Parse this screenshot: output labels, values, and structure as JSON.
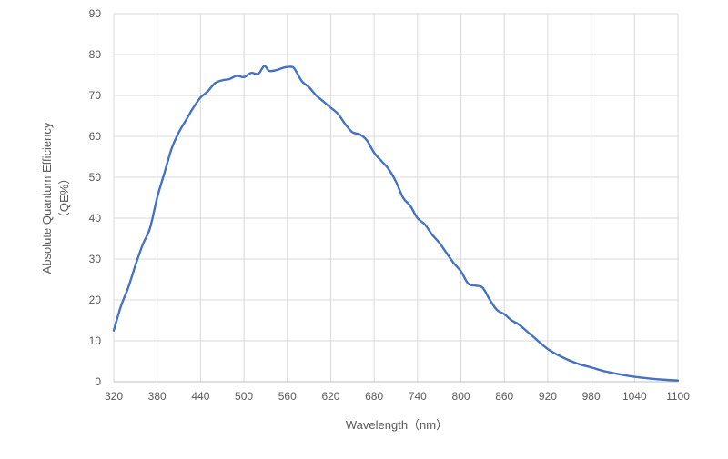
{
  "chart_data": {
    "type": "line",
    "title": "",
    "xlabel": "Wavelength（nm）",
    "ylabel_line1": "Absolute Quantum Efficiency",
    "ylabel_line2": "（QE%）",
    "xlim": [
      320,
      1100
    ],
    "ylim": [
      0,
      90
    ],
    "x_ticks": [
      320,
      380,
      440,
      500,
      560,
      620,
      680,
      740,
      800,
      860,
      920,
      980,
      1040,
      1100
    ],
    "y_ticks": [
      0,
      10,
      20,
      30,
      40,
      50,
      60,
      70,
      80,
      90
    ],
    "grid": "vertical and horizontal",
    "legend": "none",
    "colors": {
      "series": "#4472c4",
      "grid": "#d9d9d9",
      "text": "#595959"
    },
    "series": [
      {
        "x": [
          320,
          330,
          340,
          350,
          360,
          370,
          380,
          390,
          400,
          410,
          420,
          430,
          440,
          450,
          460,
          470,
          480,
          490,
          500,
          510,
          520,
          528,
          535,
          545,
          555,
          565,
          570,
          580,
          590,
          600,
          610,
          620,
          630,
          640,
          650,
          660,
          670,
          680,
          690,
          700,
          710,
          720,
          730,
          740,
          750,
          760,
          770,
          780,
          790,
          800,
          810,
          820,
          830,
          840,
          850,
          860,
          870,
          880,
          890,
          900,
          920,
          940,
          960,
          980,
          1000,
          1020,
          1040,
          1060,
          1080,
          1100
        ],
        "values": [
          12.5,
          18.5,
          23,
          28.5,
          33.5,
          37.5,
          45,
          51,
          57,
          61,
          64,
          67,
          69.5,
          71,
          73,
          73.7,
          74,
          74.8,
          74.5,
          75.5,
          75.3,
          77.2,
          76,
          76.2,
          76.8,
          77,
          76.5,
          73.5,
          72,
          70,
          68.5,
          67,
          65.5,
          63,
          61,
          60.5,
          59,
          56,
          54,
          52,
          49,
          45,
          43,
          40,
          38.5,
          36,
          34,
          31.5,
          29,
          27,
          24,
          23.5,
          23,
          20,
          17.5,
          16.5,
          15,
          14,
          12.5,
          11,
          8,
          6,
          4.5,
          3.5,
          2.5,
          1.8,
          1.2,
          0.8,
          0.5,
          0.3
        ]
      }
    ]
  }
}
